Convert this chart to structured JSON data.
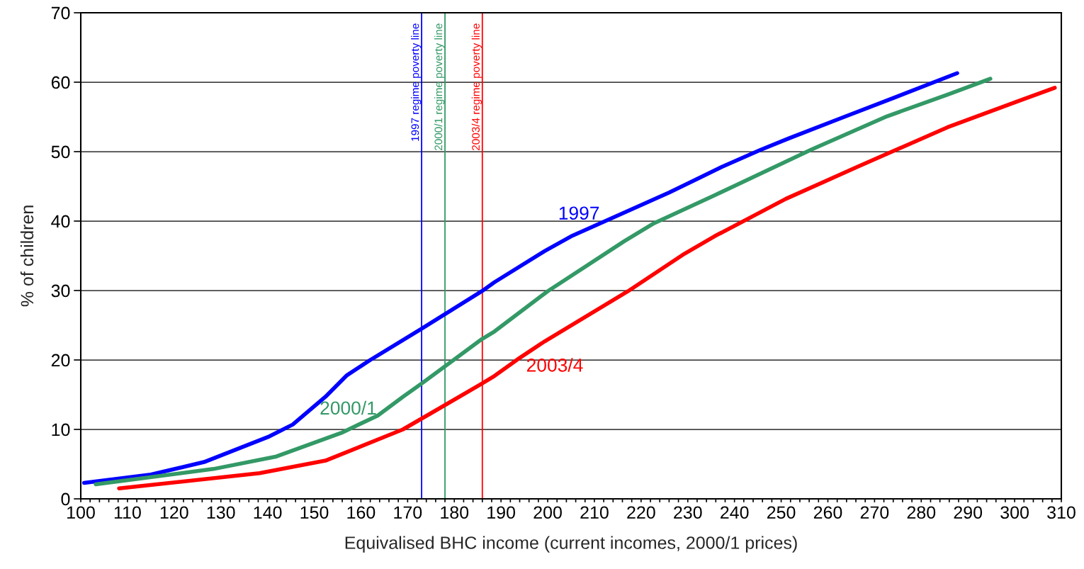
{
  "chart_data": {
    "type": "line",
    "xlabel": "Equivalised BHC income (current incomes, 2000/1 prices)",
    "ylabel": "% of children",
    "xlim": [
      100,
      310
    ],
    "ylim": [
      0,
      70
    ],
    "xticks": [
      100,
      {
        "value": 102,
        "label": null
      },
      {
        "value": 104,
        "label": null
      },
      {
        "value": 106,
        "label": null
      },
      {
        "value": 108,
        "label": null
      },
      110,
      {
        "value": 112,
        "label": null
      },
      {
        "value": 114,
        "label": null
      },
      {
        "value": 116,
        "label": null
      },
      {
        "value": 118,
        "label": null
      },
      120,
      {
        "value": 122,
        "label": null
      },
      {
        "value": 124,
        "label": null
      },
      {
        "value": 126,
        "label": null
      },
      {
        "value": 128,
        "label": null
      },
      130,
      {
        "value": 132,
        "label": null
      },
      {
        "value": 134,
        "label": null
      },
      {
        "value": 136,
        "label": null
      },
      {
        "value": 138,
        "label": null
      },
      140,
      {
        "value": 142,
        "label": null
      },
      {
        "value": 144,
        "label": null
      },
      {
        "value": 146,
        "label": null
      },
      {
        "value": 148,
        "label": null
      },
      150,
      {
        "value": 152,
        "label": null
      },
      {
        "value": 154,
        "label": null
      },
      {
        "value": 156,
        "label": null
      },
      {
        "value": 158,
        "label": null
      },
      160,
      {
        "value": 162,
        "label": null
      },
      {
        "value": 164,
        "label": null
      },
      {
        "value": 166,
        "label": null
      },
      {
        "value": 168,
        "label": null
      },
      170,
      {
        "value": 172,
        "label": null
      },
      {
        "value": 174,
        "label": null
      },
      {
        "value": 176,
        "label": null
      },
      {
        "value": 178,
        "label": null
      },
      180,
      {
        "value": 182,
        "label": null
      },
      {
        "value": 184,
        "label": null
      },
      {
        "value": 186,
        "label": null
      },
      {
        "value": 188,
        "label": null
      },
      190,
      {
        "value": 192,
        "label": null
      },
      {
        "value": 194,
        "label": null
      },
      {
        "value": 196,
        "label": null
      },
      {
        "value": 198,
        "label": null
      },
      200,
      {
        "value": 202,
        "label": null
      },
      {
        "value": 204,
        "label": null
      },
      {
        "value": 206,
        "label": null
      },
      {
        "value": 208,
        "label": null
      },
      210,
      {
        "value": 212,
        "label": null
      },
      {
        "value": 214,
        "label": null
      },
      {
        "value": 216,
        "label": null
      },
      {
        "value": 218,
        "label": null
      },
      220,
      {
        "value": 222,
        "label": null
      },
      {
        "value": 224,
        "label": null
      },
      {
        "value": 226,
        "label": null
      },
      {
        "value": 228,
        "label": null
      },
      230,
      {
        "value": 232,
        "label": null
      },
      {
        "value": 234,
        "label": null
      },
      {
        "value": 236,
        "label": null
      },
      {
        "value": 238,
        "label": null
      },
      240,
      {
        "value": 242,
        "label": null
      },
      {
        "value": 244,
        "label": null
      },
      {
        "value": 246,
        "label": null
      },
      {
        "value": 248,
        "label": null
      },
      250,
      {
        "value": 252,
        "label": null
      },
      {
        "value": 254,
        "label": null
      },
      {
        "value": 256,
        "label": null
      },
      {
        "value": 258,
        "label": null
      },
      260,
      {
        "value": 262,
        "label": null
      },
      {
        "value": 264,
        "label": null
      },
      {
        "value": 266,
        "label": null
      },
      {
        "value": 268,
        "label": null
      },
      270,
      {
        "value": 272,
        "label": null
      },
      {
        "value": 274,
        "label": null
      },
      {
        "value": 276,
        "label": null
      },
      {
        "value": 278,
        "label": null
      },
      280,
      {
        "value": 282,
        "label": null
      },
      {
        "value": 284,
        "label": null
      },
      {
        "value": 286,
        "label": null
      },
      {
        "value": 288,
        "label": null
      },
      290,
      {
        "value": 292,
        "label": null
      },
      {
        "value": 294,
        "label": null
      },
      {
        "value": 296,
        "label": null
      },
      {
        "value": 298,
        "label": null
      },
      300,
      {
        "value": 302,
        "label": null
      },
      {
        "value": 304,
        "label": null
      },
      {
        "value": 306,
        "label": null
      },
      {
        "value": 308,
        "label": null
      },
      310
    ],
    "yticks": [
      0,
      10,
      20,
      30,
      40,
      50,
      60,
      70
    ],
    "grid": "y",
    "marker": "none",
    "line_style": "solid",
    "series": [
      {
        "name": "1997",
        "color": "#0000ff",
        "x": [
          100.7,
          115,
          126.4,
          140.4,
          145.4,
          152.4,
          157,
          162,
          173,
          185.9,
          188.6,
          199.4,
          205,
          213,
          226,
          237.3,
          245.4,
          251.6,
          263.1,
          274.3,
          287.7
        ],
        "values": [
          2.3,
          3.5,
          5.3,
          9.0,
          10.7,
          14.7,
          17.8,
          20.0,
          24.5,
          29.9,
          31.2,
          35.7,
          37.8,
          40.2,
          44.1,
          47.8,
          50.2,
          51.9,
          54.9,
          57.8,
          61.3
        ]
      },
      {
        "name": "2000/1",
        "color": "#339966",
        "x": [
          103.2,
          128.4,
          141.9,
          155.8,
          163.6,
          169,
          173,
          185.9,
          188.6,
          200,
          216.4,
          222.8,
          235.7,
          256.5,
          272.7,
          285.6,
          294.8
        ],
        "values": [
          2.1,
          4.3,
          6.1,
          9.5,
          12.0,
          14.7,
          16.6,
          23.0,
          24.1,
          29.9,
          37.1,
          39.7,
          43.7,
          50.3,
          55.1,
          58.2,
          60.5
        ]
      },
      {
        "name": "2003/4",
        "color": "#ff0000",
        "x": [
          108.2,
          138.3,
          152.4,
          169,
          175.7,
          185.9,
          188.6,
          194,
          199.4,
          217.2,
          229.3,
          235.7,
          251,
          266.3,
          285.6,
          300.9,
          308.6
        ],
        "values": [
          1.5,
          3.7,
          5.5,
          10.0,
          12.6,
          16.6,
          17.7,
          20.3,
          22.7,
          29.9,
          35.3,
          37.8,
          43.2,
          47.8,
          53.5,
          57.3,
          59.2
        ]
      }
    ],
    "ref_lines": [
      {
        "axis": "x",
        "value": 173,
        "label": "1997 regime poverty line",
        "color": "#0000ff"
      },
      {
        "axis": "x",
        "value": 178,
        "label": "2000/1 regime poverty line",
        "color": "#339966"
      },
      {
        "axis": "x",
        "value": 186,
        "label": "2003/4 regime poverty line",
        "color": "#ff0000"
      }
    ]
  }
}
